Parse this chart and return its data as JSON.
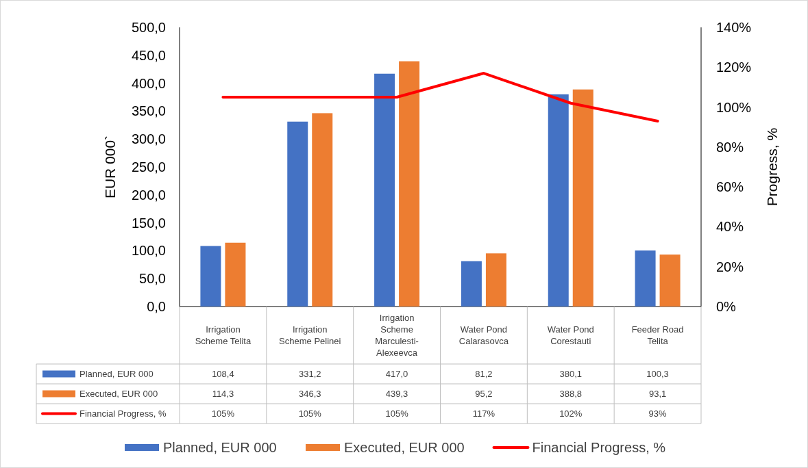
{
  "chart_data": {
    "type": "bar",
    "ylabel": "EUR 000`",
    "y2label": "Progress, %",
    "categories": [
      "Irrigation Scheme Telita",
      "Irrigation Scheme Pelinei",
      "Irrigation Scheme Marculesti-Alexeevca",
      "Water Pond Calarasovca",
      "Water Pond Corestauti",
      "Feeder Road Telita"
    ],
    "series": [
      {
        "name": "Planned, EUR 000",
        "color": "#4472c4",
        "values": [
          108.4,
          331.2,
          417.0,
          81.2,
          380.1,
          100.3
        ],
        "value_labels": [
          "108,4",
          "331,2",
          "417,0",
          "81,2",
          "380,1",
          "100,3"
        ]
      },
      {
        "name": "Executed, EUR 000",
        "color": "#ed7d31",
        "values": [
          114.3,
          346.3,
          439.3,
          95.2,
          388.8,
          93.1
        ],
        "value_labels": [
          "114,3",
          "346,3",
          "439,3",
          "95,2",
          "388,8",
          "93,1"
        ]
      },
      {
        "name": "Financial Progress, %",
        "type": "line",
        "axis": "y2",
        "color": "#ff0000",
        "values": [
          105,
          105,
          105,
          117,
          102,
          93
        ],
        "value_labels": [
          "105%",
          "105%",
          "105%",
          "117%",
          "102%",
          "93%"
        ]
      }
    ],
    "ylim": [
      0,
      500
    ],
    "yticks": [
      {
        "value": 0,
        "label": "0,0"
      },
      {
        "value": 50,
        "label": "50,0"
      },
      {
        "value": 100,
        "label": "100,0"
      },
      {
        "value": 150,
        "label": "150,0"
      },
      {
        "value": 200,
        "label": "200,0"
      },
      {
        "value": 250,
        "label": "250,0"
      },
      {
        "value": 300,
        "label": "300,0"
      },
      {
        "value": 350,
        "label": "350,0"
      },
      {
        "value": 400,
        "label": "400,0"
      },
      {
        "value": 450,
        "label": "450,0"
      },
      {
        "value": 500,
        "label": "500,0"
      }
    ],
    "y2lim": [
      0,
      140
    ],
    "y2ticks": [
      {
        "value": 0,
        "label": "0%"
      },
      {
        "value": 20,
        "label": "20%"
      },
      {
        "value": 40,
        "label": "40%"
      },
      {
        "value": 60,
        "label": "60%"
      },
      {
        "value": 80,
        "label": "80%"
      },
      {
        "value": 100,
        "label": "100%"
      },
      {
        "value": 120,
        "label": "120%"
      },
      {
        "value": 140,
        "label": "140%"
      }
    ],
    "grid": false,
    "legend": "bottom",
    "marker": "none",
    "line_style": "solid"
  }
}
